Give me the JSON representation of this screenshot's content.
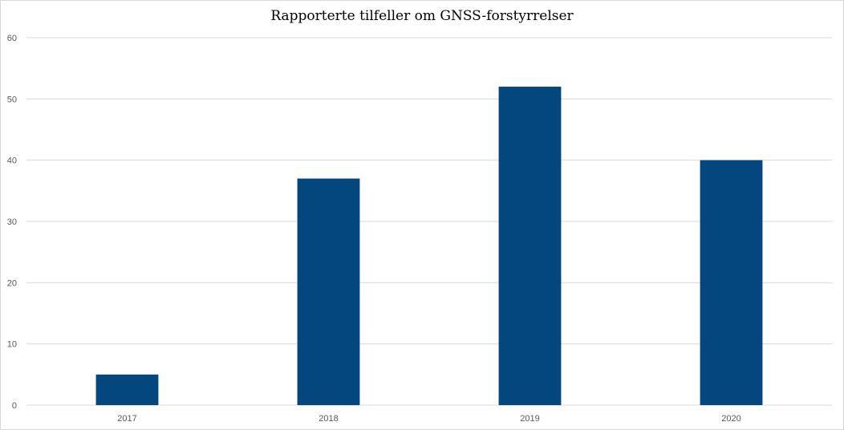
{
  "chart_data": {
    "type": "bar",
    "title": "Rapporterte tilfeller om GNSS-forstyrrelser",
    "xlabel": "",
    "ylabel": "",
    "categories": [
      "2017",
      "2018",
      "2019",
      "2020"
    ],
    "values": [
      5,
      37,
      52,
      40
    ],
    "ylim": [
      0,
      60
    ],
    "yticks": [
      0,
      10,
      20,
      30,
      40,
      50,
      60
    ],
    "grid": true,
    "legend": "none",
    "colors": {
      "bar": "#03477E",
      "gridline": "#d9d9d9",
      "axis_text": "#595959"
    }
  }
}
